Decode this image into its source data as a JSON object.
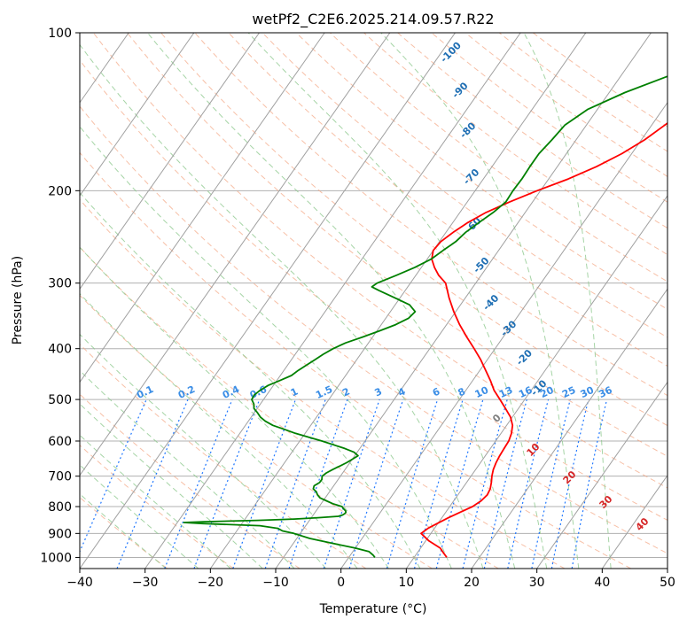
{
  "chart_data": {
    "type": "line",
    "title": "wetPf2_C2E6.2025.214.09.57.R22",
    "xlabel": "Temperature (°C)",
    "ylabel": "Pressure (hPa)",
    "xlim": [
      -40,
      50
    ],
    "ylim": [
      1050,
      100
    ],
    "y_scale": "log",
    "grid": true,
    "x_ticks": [
      -40,
      -30,
      -20,
      -10,
      0,
      10,
      20,
      30,
      40,
      50
    ],
    "y_ticks": [
      100,
      200,
      300,
      400,
      500,
      600,
      700,
      800,
      900,
      1000
    ],
    "x_tick_labels": [
      "−40",
      "−30",
      "−20",
      "−10",
      "0",
      "10",
      "20",
      "30",
      "40",
      "50"
    ],
    "y_tick_labels": [
      "100",
      "200",
      "300",
      "400",
      "500",
      "600",
      "700",
      "800",
      "900",
      "1000"
    ],
    "colors": {
      "temperature": "#ff0000",
      "dewpoint": "#008000",
      "isotherm": "#a0a0a0",
      "dry_adiabat": "#f4a582",
      "moist_adiabat": "#8fc98f",
      "mixing_ratio": "#1f77ff",
      "grid": "#b0b0b0",
      "theta_e_label": "#d62728",
      "height_label": "#1f6fb4"
    },
    "series": [
      {
        "key": "temperature",
        "p": [
          1000,
          980,
          960,
          930,
          900,
          880,
          860,
          840,
          820,
          800,
          780,
          760,
          740,
          720,
          700,
          680,
          660,
          640,
          620,
          600,
          580,
          560,
          540,
          520,
          500,
          480,
          460,
          440,
          420,
          400,
          380,
          360,
          340,
          320,
          300,
          290,
          280,
          270,
          260,
          250,
          240,
          230,
          220,
          210,
          200,
          190,
          180,
          170,
          160,
          150,
          140,
          130,
          120,
          110,
          100
        ],
        "t": [
          15.0,
          14.0,
          13.0,
          10.5,
          8.5,
          9.0,
          10.0,
          11.0,
          12.2,
          13.5,
          14.2,
          14.5,
          14.3,
          13.8,
          13.2,
          12.7,
          12.4,
          12.2,
          12.1,
          12.0,
          11.6,
          10.9,
          9.7,
          8.0,
          6.2,
          4.3,
          2.7,
          0.9,
          -1.0,
          -3.2,
          -5.6,
          -8.0,
          -10.3,
          -12.5,
          -14.6,
          -16.5,
          -18.0,
          -19.3,
          -20.0,
          -19.8,
          -18.9,
          -17.7,
          -16.0,
          -13.5,
          -10.5,
          -7.0,
          -4.0,
          -1.5,
          0.5,
          2.0,
          3.5,
          5.0,
          6.0,
          7.0,
          8.0
        ]
      },
      {
        "key": "dewpoint",
        "p": [
          1000,
          990,
          975,
          960,
          940,
          920,
          900,
          890,
          880,
          870,
          862,
          858,
          855,
          850,
          845,
          840,
          835,
          830,
          825,
          820,
          815,
          808,
          800,
          790,
          780,
          770,
          760,
          750,
          740,
          730,
          720,
          710,
          700,
          690,
          680,
          670,
          660,
          650,
          640,
          630,
          620,
          610,
          600,
          590,
          580,
          570,
          560,
          550,
          540,
          530,
          520,
          510,
          500,
          490,
          480,
          470,
          460,
          450,
          440,
          430,
          420,
          410,
          400,
          390,
          380,
          370,
          360,
          350,
          340,
          330,
          320,
          310,
          305,
          300,
          290,
          280,
          270,
          260,
          250,
          240,
          230,
          220,
          210,
          200,
          190,
          180,
          170,
          160,
          150,
          140,
          130,
          120,
          110,
          100
        ],
        "t": [
          4.0,
          3.5,
          2.5,
          0.0,
          -4.0,
          -8.0,
          -11.0,
          -13.0,
          -14.0,
          -17.0,
          -26.0,
          -29.0,
          -26.0,
          -18.0,
          -12.5,
          -9.0,
          -6.0,
          -5.5,
          -5.3,
          -5.3,
          -5.5,
          -6.0,
          -6.5,
          -8.2,
          -9.5,
          -10.8,
          -11.5,
          -12.0,
          -12.8,
          -13.0,
          -12.5,
          -12.5,
          -12.8,
          -12.5,
          -11.9,
          -11.2,
          -10.5,
          -10.0,
          -9.5,
          -10.5,
          -12.3,
          -14.4,
          -16.6,
          -19.0,
          -21.5,
          -23.6,
          -25.8,
          -27.4,
          -28.6,
          -29.5,
          -30.5,
          -31.0,
          -31.8,
          -31.9,
          -31.5,
          -30.8,
          -29.5,
          -28.3,
          -27.8,
          -27.1,
          -26.4,
          -25.7,
          -24.8,
          -23.5,
          -21.5,
          -19.6,
          -17.8,
          -16.5,
          -16.2,
          -17.8,
          -20.8,
          -24.0,
          -25.5,
          -25.1,
          -23.0,
          -21.0,
          -19.4,
          -18.5,
          -17.5,
          -17.0,
          -16.0,
          -14.9,
          -14.1,
          -14.2,
          -14.1,
          -14.2,
          -14.2,
          -13.7,
          -13.3,
          -11.5,
          -7.6,
          -2.2,
          3.6,
          8.0
        ]
      }
    ],
    "mixing_ratio_labels": [
      "0.1",
      "0.2",
      "0.4",
      "0.6",
      "1",
      "1.5",
      "2",
      "3",
      "4",
      "6",
      "8",
      "10",
      "13",
      "16",
      "20",
      "25",
      "30",
      "36"
    ],
    "height_labels": [
      "-100",
      "-90",
      "-80",
      "-70",
      "-60",
      "-50",
      "-40",
      "-30",
      "-20",
      "-10"
    ],
    "theta_e_labels": [
      "0",
      "10",
      "20",
      "30",
      "40"
    ]
  }
}
